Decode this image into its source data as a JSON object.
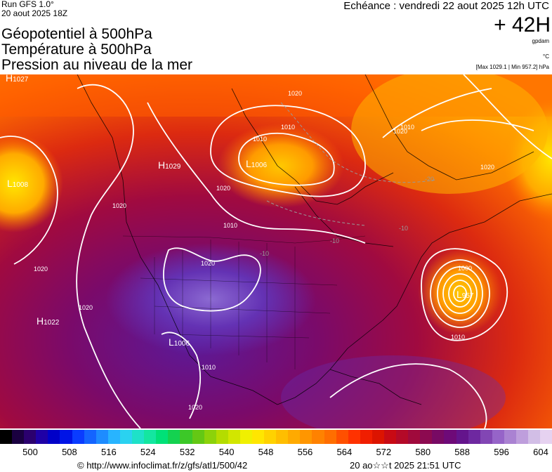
{
  "header": {
    "run": "Run GFS 1.0°",
    "run_date": "20 aout 2025 18Z",
    "title_lines": [
      "Géopotentiel à 500hPa",
      "Température à 500hPa",
      "Pression au niveau de la mer"
    ],
    "echeance": "Echéance : vendredi 22 aout 2025 12h UTC",
    "lead": "+ 42H",
    "unit_gpdam": "gpdam",
    "unit_c": "°C",
    "range": "[Max 1029.1 | Min 957.2] hPa"
  },
  "map": {
    "centers": [
      {
        "type": "H",
        "value": "1027"
      },
      {
        "type": "L",
        "value": "1008"
      },
      {
        "type": "H",
        "value": "1029"
      },
      {
        "type": "L",
        "value": "1006"
      },
      {
        "type": "H",
        "value": "1022"
      },
      {
        "type": "L",
        "value": "1006"
      },
      {
        "type": "L",
        "value": "957"
      }
    ],
    "isobar_labels": [
      "1020",
      "1010",
      "1010",
      "1010",
      "1020",
      "1020",
      "1020",
      "1020",
      "1020",
      "1020",
      "1020",
      "1010",
      "1010",
      "1000",
      "1010",
      "1020"
    ],
    "temperature_labels": [
      "-20",
      "-10",
      "-10",
      "-10"
    ]
  },
  "colorbar": {
    "ticks": [
      "500",
      "508",
      "516",
      "524",
      "532",
      "540",
      "548",
      "556",
      "564",
      "572",
      "580",
      "588",
      "596",
      "604"
    ],
    "colors": [
      "#000000",
      "#1a0040",
      "#2b006e",
      "#1f00a6",
      "#0000c8",
      "#0014e6",
      "#0a3cff",
      "#1464ff",
      "#1e8cff",
      "#28b4ff",
      "#2ad2f0",
      "#1ee1c8",
      "#14e6a0",
      "#00e178",
      "#14d250",
      "#3cc828",
      "#64c814",
      "#8cd20a",
      "#b4dc00",
      "#d2e600",
      "#f0f000",
      "#ffe600",
      "#ffd200",
      "#ffbe00",
      "#ffaa00",
      "#ff9600",
      "#ff8200",
      "#ff6e00",
      "#ff5000",
      "#ff3200",
      "#f01e00",
      "#dc1400",
      "#c80a14",
      "#b40a28",
      "#a00a3c",
      "#8c0a50",
      "#780a64",
      "#6e0a78",
      "#64148c",
      "#6e28a0",
      "#8246b4",
      "#9664c8",
      "#aa82d2",
      "#be9edc",
      "#d2bee6",
      "#e6d2f0"
    ]
  },
  "footer": {
    "credit": "© http://www.infoclimat.fr/z/gfs/atl1/500/42",
    "timestamp": "20 ao☆☆t 2025 21:51 UTC"
  }
}
